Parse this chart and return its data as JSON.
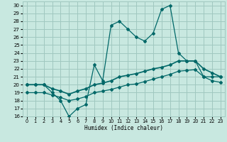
{
  "xlabel": "Humidex (Indice chaleur)",
  "bg_color": "#c8e8e0",
  "grid_color": "#a0c8c0",
  "line_color": "#006868",
  "xlim": [
    -0.5,
    23.5
  ],
  "ylim": [
    16,
    30.5
  ],
  "yticks": [
    16,
    17,
    18,
    19,
    20,
    21,
    22,
    23,
    24,
    25,
    26,
    27,
    28,
    29,
    30
  ],
  "xticks": [
    0,
    1,
    2,
    3,
    4,
    5,
    6,
    7,
    8,
    9,
    10,
    11,
    12,
    13,
    14,
    15,
    16,
    17,
    18,
    19,
    20,
    21,
    22,
    23
  ],
  "series1_x": [
    0,
    1,
    2,
    3,
    4,
    5,
    6,
    7,
    8,
    9,
    10,
    11,
    12,
    13,
    14,
    15,
    16,
    17,
    18,
    19,
    20,
    21,
    22,
    23
  ],
  "series1_y": [
    20,
    20,
    20,
    19,
    18,
    16,
    17,
    17.5,
    22.5,
    20.5,
    27.5,
    28,
    27,
    26,
    25.5,
    26.5,
    29.5,
    30,
    24,
    23,
    23,
    21,
    21,
    21
  ],
  "series2_x": [
    0,
    1,
    2,
    3,
    4,
    5,
    6,
    7,
    8,
    9,
    10,
    11,
    12,
    13,
    14,
    15,
    16,
    17,
    18,
    19,
    20,
    21,
    22,
    23
  ],
  "series2_y": [
    20,
    20,
    20,
    19.5,
    19.2,
    18.8,
    19.2,
    19.5,
    20,
    20.2,
    20.5,
    21,
    21.2,
    21.4,
    21.7,
    22,
    22.2,
    22.5,
    23,
    23,
    23,
    22,
    21.5,
    21
  ],
  "series3_x": [
    0,
    1,
    2,
    3,
    4,
    5,
    6,
    7,
    8,
    9,
    10,
    11,
    12,
    13,
    14,
    15,
    16,
    17,
    18,
    19,
    20,
    21,
    22,
    23
  ],
  "series3_y": [
    19,
    19,
    19,
    18.7,
    18.4,
    18.0,
    18.2,
    18.5,
    19,
    19.2,
    19.4,
    19.7,
    20,
    20.1,
    20.4,
    20.7,
    21,
    21.3,
    21.7,
    21.8,
    21.9,
    21,
    20.5,
    20.3
  ]
}
